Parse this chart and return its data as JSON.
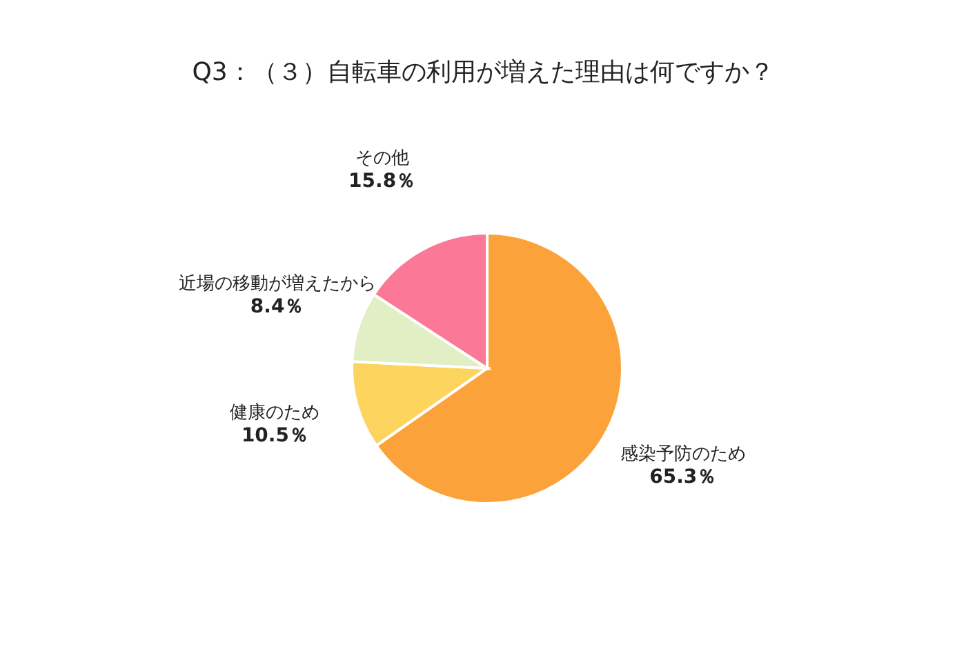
{
  "chart_data": {
    "type": "pie",
    "title": "Q3：（３）自転車の利用が増えた理由は何ですか？",
    "categories": [
      "感染予防のため",
      "健康のため",
      "近場の移動が増えたから",
      "その他"
    ],
    "values": [
      65.3,
      10.5,
      8.4,
      15.8
    ],
    "value_labels": [
      "65.3％",
      "10.5％",
      "8.4％",
      "15.8％"
    ],
    "colors": [
      "#fca23a",
      "#fdd45e",
      "#e2eec4",
      "#fb7896"
    ],
    "legend": false
  }
}
